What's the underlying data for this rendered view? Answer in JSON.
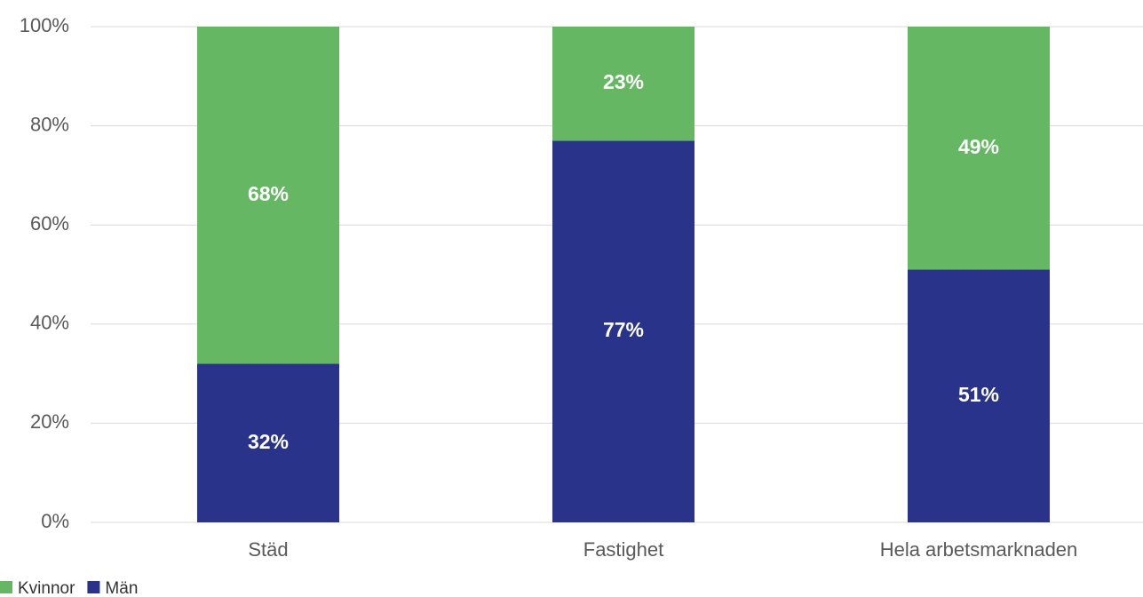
{
  "chart_data": {
    "type": "stacked_bar",
    "categories": [
      "Städ",
      "Fastighet",
      "Hela arbetsmarknaden"
    ],
    "series": [
      {
        "name": "Kvinnor",
        "color": "#66b764",
        "values": [
          68,
          23,
          49
        ],
        "value_labels": [
          "68%",
          "23%",
          "49%"
        ]
      },
      {
        "name": "Män",
        "color": "#283389",
        "values": [
          32,
          77,
          51
        ],
        "value_labels": [
          "32%",
          "77%",
          "51%"
        ]
      }
    ],
    "ylim": [
      0,
      100
    ],
    "yticks": [
      {
        "value": 0,
        "label": "0%"
      },
      {
        "value": 20,
        "label": "20%"
      },
      {
        "value": 40,
        "label": "40%"
      },
      {
        "value": 60,
        "label": "60%"
      },
      {
        "value": 80,
        "label": "80%"
      },
      {
        "value": 100,
        "label": "100%"
      }
    ],
    "grid": true,
    "legend": "bottom-left"
  }
}
